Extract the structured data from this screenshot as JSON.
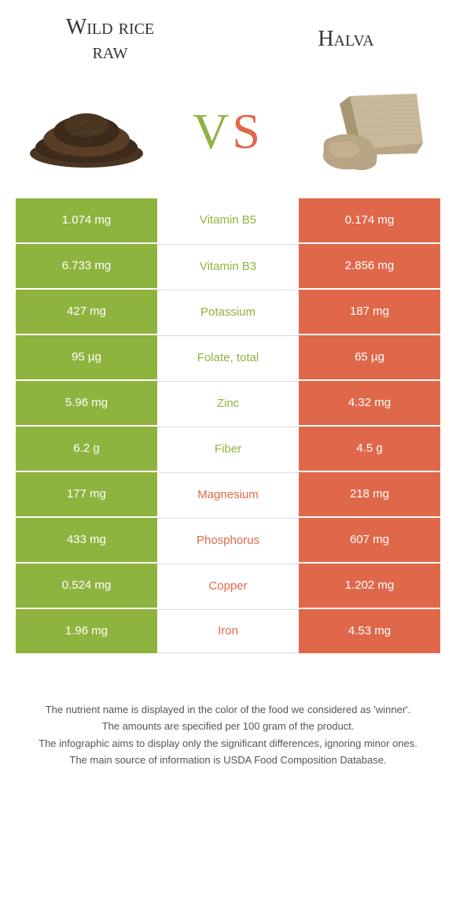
{
  "colors": {
    "green": "#8fb33f",
    "orange": "#e0684a",
    "mid_text_green": "#8fb33f",
    "mid_text_orange": "#e0684a",
    "bg": "#ffffff",
    "rice_dark": "#3d2a1a",
    "rice_mid": "#5a3d26",
    "halva_light": "#c9b89a",
    "halva_mid": "#b8a585",
    "halva_dark": "#a08f6f"
  },
  "header": {
    "left_title_line1": "Wild rice",
    "left_title_line2": "raw",
    "right_title": "Halva",
    "vs_v": "V",
    "vs_s": "S"
  },
  "rows": [
    {
      "left": "1.074 mg",
      "mid": "Vitamin B5",
      "right": "0.174 mg",
      "winner": "left"
    },
    {
      "left": "6.733 mg",
      "mid": "Vitamin B3",
      "right": "2.856 mg",
      "winner": "left"
    },
    {
      "left": "427 mg",
      "mid": "Potassium",
      "right": "187 mg",
      "winner": "left"
    },
    {
      "left": "95 µg",
      "mid": "Folate, total",
      "right": "65 µg",
      "winner": "left"
    },
    {
      "left": "5.96 mg",
      "mid": "Zinc",
      "right": "4.32 mg",
      "winner": "left"
    },
    {
      "left": "6.2 g",
      "mid": "Fiber",
      "right": "4.5 g",
      "winner": "left"
    },
    {
      "left": "177 mg",
      "mid": "Magnesium",
      "right": "218 mg",
      "winner": "right"
    },
    {
      "left": "433 mg",
      "mid": "Phosphorus",
      "right": "607 mg",
      "winner": "right"
    },
    {
      "left": "0.524 mg",
      "mid": "Copper",
      "right": "1.202 mg",
      "winner": "right"
    },
    {
      "left": "1.96 mg",
      "mid": "Iron",
      "right": "4.53 mg",
      "winner": "right"
    }
  ],
  "footer": {
    "line1": "The nutrient name is displayed in the color of the food we considered as 'winner'.",
    "line2": "The amounts are specified per 100 gram of the product.",
    "line3": "The infographic aims to display only the significant differences, ignoring minor ones.",
    "line4": "The main source of information is USDA Food Composition Database."
  }
}
